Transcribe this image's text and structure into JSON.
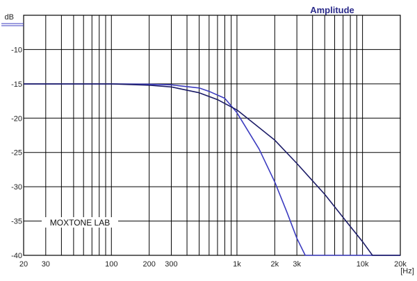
{
  "chart_data": {
    "type": "line",
    "title": "Amplitude",
    "ylabel": "dB",
    "xunit": "[Hz]",
    "x_scale": "log",
    "xlim": [
      20,
      20000
    ],
    "ylim": [
      -40,
      -5
    ],
    "grid": true,
    "x_ticks": [
      {
        "value": 20,
        "label": "20"
      },
      {
        "value": 30,
        "label": "30"
      },
      {
        "value": 100,
        "label": "100"
      },
      {
        "value": 200,
        "label": "200"
      },
      {
        "value": 300,
        "label": "300"
      },
      {
        "value": 1000,
        "label": "1k"
      },
      {
        "value": 2000,
        "label": "2k"
      },
      {
        "value": 3000,
        "label": "3k"
      },
      {
        "value": 10000,
        "label": "10k"
      },
      {
        "value": 20000,
        "label": "20k"
      }
    ],
    "y_ticks": [
      {
        "value": -10,
        "label": "-10"
      },
      {
        "value": -15,
        "label": "-15"
      },
      {
        "value": -20,
        "label": "-20"
      },
      {
        "value": -25,
        "label": "-25"
      },
      {
        "value": -30,
        "label": "-30"
      },
      {
        "value": -35,
        "label": "-35"
      },
      {
        "value": -40,
        "label": "-40"
      }
    ],
    "series": [
      {
        "color": "#3b3bbf",
        "points": [
          [
            20,
            -15
          ],
          [
            100,
            -15
          ],
          [
            200,
            -15.05
          ],
          [
            300,
            -15.15
          ],
          [
            500,
            -15.6
          ],
          [
            600,
            -16.1
          ],
          [
            800,
            -17.1
          ],
          [
            1000,
            -19.2
          ],
          [
            1500,
            -24.5
          ],
          [
            2000,
            -29.3
          ],
          [
            2500,
            -33.7
          ],
          [
            3000,
            -37.5
          ],
          [
            3500,
            -40
          ],
          [
            20000,
            -40
          ]
        ]
      },
      {
        "color": "#1a1a66",
        "points": [
          [
            20,
            -15
          ],
          [
            100,
            -15
          ],
          [
            200,
            -15.2
          ],
          [
            300,
            -15.45
          ],
          [
            500,
            -16.3
          ],
          [
            700,
            -17.3
          ],
          [
            1000,
            -18.8
          ],
          [
            2000,
            -23.2
          ],
          [
            3000,
            -26.6
          ],
          [
            5000,
            -31.1
          ],
          [
            8000,
            -35.8
          ],
          [
            10000,
            -38
          ],
          [
            12000,
            -40
          ],
          [
            20000,
            -40
          ]
        ]
      }
    ],
    "annotation": "MOXTONE LAB"
  }
}
